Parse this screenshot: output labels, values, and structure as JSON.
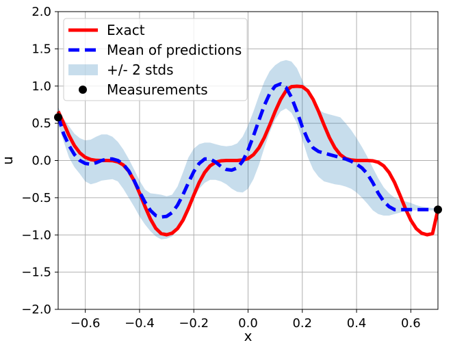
{
  "chart_data": {
    "type": "line",
    "xlabel": "x",
    "ylabel": "u",
    "xlim": [
      -0.7,
      0.7
    ],
    "ylim": [
      -2.0,
      2.0
    ],
    "grid": true,
    "legend_position": "top-left",
    "xticks": [
      -0.6,
      -0.4,
      -0.2,
      0.0,
      0.2,
      0.4,
      0.6
    ],
    "xtick_labels": [
      "−0.6",
      "−0.4",
      "−0.2",
      "0.0",
      "0.2",
      "0.4",
      "0.6"
    ],
    "yticks": [
      -2.0,
      -1.5,
      -1.0,
      -0.5,
      0.0,
      0.5,
      1.0,
      1.5,
      2.0
    ],
    "ytick_labels": [
      "−2.0",
      "−1.5",
      "−1.0",
      "−0.5",
      "0.0",
      "0.5",
      "1.0",
      "1.5",
      "2.0"
    ],
    "series": [
      {
        "name": "Exact",
        "style": "solid",
        "color": "#ff0000",
        "x": [
          -0.7,
          -0.68,
          -0.66,
          -0.64,
          -0.62,
          -0.6,
          -0.58,
          -0.56,
          -0.54,
          -0.52,
          -0.5,
          -0.48,
          -0.46,
          -0.44,
          -0.42,
          -0.4,
          -0.38,
          -0.36,
          -0.34,
          -0.32,
          -0.3,
          -0.28,
          -0.26,
          -0.24,
          -0.22,
          -0.2,
          -0.18,
          -0.16,
          -0.14,
          -0.12,
          -0.1,
          -0.08,
          -0.06,
          -0.04,
          -0.02,
          0.0,
          0.02,
          0.04,
          0.06,
          0.08,
          0.1,
          0.12,
          0.14,
          0.16,
          0.18,
          0.2,
          0.22,
          0.24,
          0.26,
          0.28,
          0.3,
          0.32,
          0.34,
          0.36,
          0.38,
          0.4,
          0.42,
          0.44,
          0.46,
          0.48,
          0.5,
          0.52,
          0.54,
          0.56,
          0.58,
          0.6,
          0.62,
          0.64,
          0.66,
          0.68,
          0.7
        ],
        "y": [
          0.66,
          0.503,
          0.336,
          0.199,
          0.102,
          0.043,
          0.013,
          0.002,
          0.0,
          0.0,
          -0.002,
          -0.018,
          -0.06,
          -0.143,
          -0.271,
          -0.437,
          -0.618,
          -0.785,
          -0.912,
          -0.982,
          -0.998,
          -0.977,
          -0.915,
          -0.803,
          -0.645,
          -0.465,
          -0.295,
          -0.161,
          -0.072,
          -0.024,
          -0.005,
          -0.0,
          0.0,
          0.0,
          0.006,
          0.026,
          0.078,
          0.171,
          0.308,
          0.478,
          0.658,
          0.82,
          0.937,
          0.992,
          0.998,
          0.992,
          0.937,
          0.82,
          0.658,
          0.478,
          0.308,
          0.171,
          0.078,
          0.026,
          0.006,
          0.0,
          0.0,
          -0.0,
          -0.005,
          -0.024,
          -0.072,
          -0.161,
          -0.295,
          -0.465,
          -0.645,
          -0.803,
          -0.915,
          -0.977,
          -0.998,
          -0.982,
          -0.66
        ]
      },
      {
        "name": "Mean of predictions",
        "style": "dashed",
        "color": "#0000ff",
        "x": [
          -0.7,
          -0.68,
          -0.66,
          -0.64,
          -0.62,
          -0.6,
          -0.58,
          -0.56,
          -0.54,
          -0.52,
          -0.5,
          -0.48,
          -0.46,
          -0.44,
          -0.42,
          -0.4,
          -0.38,
          -0.36,
          -0.34,
          -0.32,
          -0.3,
          -0.28,
          -0.26,
          -0.24,
          -0.22,
          -0.2,
          -0.18,
          -0.16,
          -0.14,
          -0.12,
          -0.1,
          -0.08,
          -0.06,
          -0.04,
          -0.02,
          0.0,
          0.02,
          0.04,
          0.06,
          0.08,
          0.1,
          0.12,
          0.14,
          0.16,
          0.18,
          0.2,
          0.22,
          0.24,
          0.26,
          0.28,
          0.3,
          0.32,
          0.34,
          0.36,
          0.38,
          0.4,
          0.42,
          0.44,
          0.46,
          0.48,
          0.5,
          0.52,
          0.54,
          0.56,
          0.58,
          0.6,
          0.62,
          0.64,
          0.66,
          0.68,
          0.7
        ],
        "y": [
          0.6,
          0.36,
          0.2,
          0.08,
          0.0,
          -0.04,
          -0.05,
          -0.03,
          0.0,
          0.02,
          0.02,
          0.0,
          -0.05,
          -0.14,
          -0.27,
          -0.42,
          -0.56,
          -0.67,
          -0.74,
          -0.76,
          -0.75,
          -0.7,
          -0.6,
          -0.46,
          -0.3,
          -0.15,
          -0.04,
          0.02,
          0.02,
          -0.02,
          -0.08,
          -0.12,
          -0.13,
          -0.1,
          -0.01,
          0.14,
          0.33,
          0.54,
          0.74,
          0.9,
          1.0,
          1.03,
          0.98,
          0.85,
          0.66,
          0.45,
          0.28,
          0.17,
          0.12,
          0.1,
          0.08,
          0.06,
          0.04,
          0.02,
          -0.01,
          -0.05,
          -0.1,
          -0.18,
          -0.3,
          -0.44,
          -0.55,
          -0.62,
          -0.66,
          -0.66,
          -0.66,
          -0.66,
          -0.66,
          -0.66,
          -0.66,
          -0.66,
          -0.66
        ]
      }
    ],
    "band": {
      "name": "+/- 2 stds",
      "color": "#1f77b4",
      "opacity": 0.25,
      "x": [
        -0.7,
        -0.68,
        -0.66,
        -0.64,
        -0.62,
        -0.6,
        -0.58,
        -0.56,
        -0.54,
        -0.52,
        -0.5,
        -0.48,
        -0.46,
        -0.44,
        -0.42,
        -0.4,
        -0.38,
        -0.36,
        -0.34,
        -0.32,
        -0.3,
        -0.28,
        -0.26,
        -0.24,
        -0.22,
        -0.2,
        -0.18,
        -0.16,
        -0.14,
        -0.12,
        -0.1,
        -0.08,
        -0.06,
        -0.04,
        -0.02,
        0.0,
        0.02,
        0.04,
        0.06,
        0.08,
        0.1,
        0.12,
        0.14,
        0.16,
        0.18,
        0.2,
        0.22,
        0.24,
        0.26,
        0.28,
        0.3,
        0.32,
        0.34,
        0.36,
        0.38,
        0.4,
        0.42,
        0.44,
        0.46,
        0.48,
        0.5,
        0.52,
        0.54,
        0.56,
        0.58,
        0.6,
        0.62,
        0.64,
        0.66,
        0.68,
        0.7
      ],
      "upper": [
        0.72,
        0.56,
        0.46,
        0.36,
        0.3,
        0.27,
        0.28,
        0.32,
        0.35,
        0.35,
        0.32,
        0.25,
        0.15,
        0.02,
        -0.12,
        -0.27,
        -0.39,
        -0.44,
        -0.45,
        -0.46,
        -0.48,
        -0.46,
        -0.35,
        -0.16,
        0.04,
        0.16,
        0.22,
        0.24,
        0.24,
        0.22,
        0.2,
        0.19,
        0.2,
        0.23,
        0.32,
        0.47,
        0.66,
        0.87,
        1.06,
        1.2,
        1.28,
        1.33,
        1.35,
        1.33,
        1.24,
        1.08,
        0.9,
        0.76,
        0.68,
        0.64,
        0.62,
        0.6,
        0.58,
        0.5,
        0.41,
        0.3,
        0.18,
        0.05,
        -0.1,
        -0.24,
        -0.36,
        -0.44,
        -0.5,
        -0.53,
        -0.55,
        -0.57,
        -0.6,
        -0.62,
        -0.63,
        -0.64,
        -0.65
      ],
      "lower": [
        0.48,
        0.26,
        0.04,
        -0.09,
        -0.18,
        -0.28,
        -0.32,
        -0.3,
        -0.27,
        -0.26,
        -0.25,
        -0.28,
        -0.38,
        -0.5,
        -0.62,
        -0.75,
        -0.86,
        -0.95,
        -1.02,
        -1.06,
        -1.05,
        -1.02,
        -0.93,
        -0.8,
        -0.66,
        -0.5,
        -0.38,
        -0.3,
        -0.26,
        -0.26,
        -0.28,
        -0.32,
        -0.38,
        -0.42,
        -0.43,
        -0.38,
        -0.25,
        -0.06,
        0.17,
        0.38,
        0.55,
        0.66,
        0.7,
        0.64,
        0.5,
        0.28,
        0.05,
        -0.12,
        -0.22,
        -0.28,
        -0.3,
        -0.32,
        -0.33,
        -0.35,
        -0.38,
        -0.43,
        -0.5,
        -0.58,
        -0.67,
        -0.72,
        -0.74,
        -0.74,
        -0.72,
        -0.7,
        -0.68,
        -0.67,
        -0.67,
        -0.67,
        -0.67,
        -0.67,
        -0.67
      ]
    },
    "measurements": {
      "name": "Measurements",
      "color": "#000000",
      "x": [
        -0.7,
        0.7
      ],
      "y": [
        0.58,
        -0.66
      ]
    }
  }
}
